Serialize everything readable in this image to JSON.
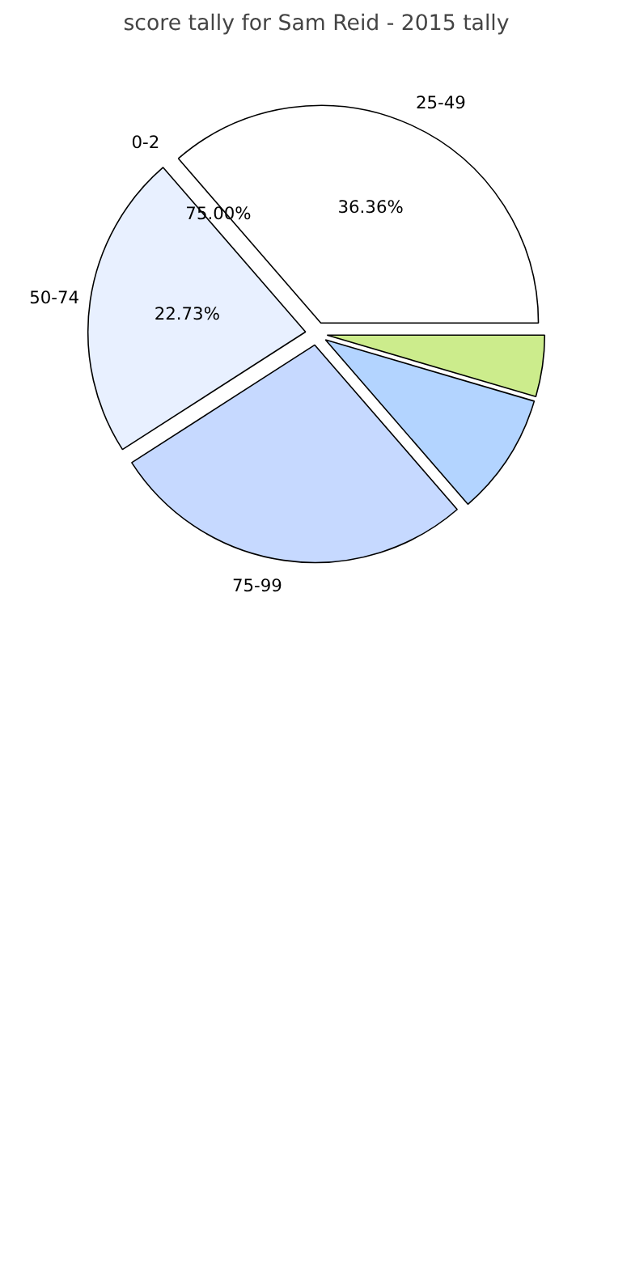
{
  "chart_data": {
    "type": "pie",
    "title": "score tally for Sam Reid - 2015 tally",
    "categories": [
      "25-49",
      "0-2",
      "50-74",
      "75-99",
      null,
      null
    ],
    "values": [
      36.36,
      0,
      22.73,
      27.27,
      9.09,
      4.55
    ],
    "colors": [
      "#ffffff",
      "#ffffff",
      "#e8f0ff",
      "#c6d9ff",
      "#b3d4ff",
      "#ccec8c"
    ],
    "value_labels": [
      "36.36%",
      null,
      "22.73%",
      null,
      null,
      null
    ],
    "annotations": [
      "75.00%"
    ]
  }
}
